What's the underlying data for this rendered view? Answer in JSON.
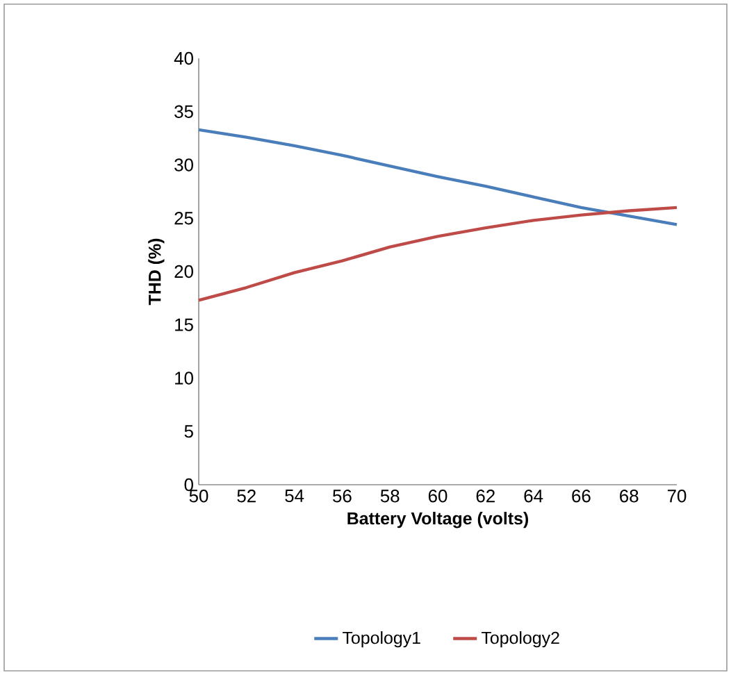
{
  "chart_data": {
    "type": "line",
    "xlabel": "Battery Voltage (volts)",
    "ylabel": "THD (%)",
    "x": [
      50,
      52,
      54,
      56,
      58,
      60,
      62,
      64,
      66,
      68,
      70
    ],
    "series": [
      {
        "name": "Topology1",
        "color": "#4a7ebb",
        "values": [
          33.3,
          32.6,
          31.8,
          30.9,
          29.9,
          28.9,
          28.0,
          27.0,
          26.0,
          25.2,
          24.4
        ]
      },
      {
        "name": "Topology2",
        "color": "#be4b48",
        "values": [
          17.3,
          18.5,
          19.9,
          21.0,
          22.3,
          23.3,
          24.1,
          24.8,
          25.3,
          25.7,
          26.0
        ]
      }
    ],
    "xlim": [
      50,
      70
    ],
    "xticks": [
      50,
      52,
      54,
      56,
      58,
      60,
      62,
      64,
      66,
      68,
      70
    ],
    "ylim": [
      0,
      40
    ],
    "yticks": [
      0,
      5,
      10,
      15,
      20,
      25,
      30,
      35,
      40
    ],
    "grid": false,
    "legend": "bottom",
    "marker": "none",
    "line_style": "solid"
  }
}
